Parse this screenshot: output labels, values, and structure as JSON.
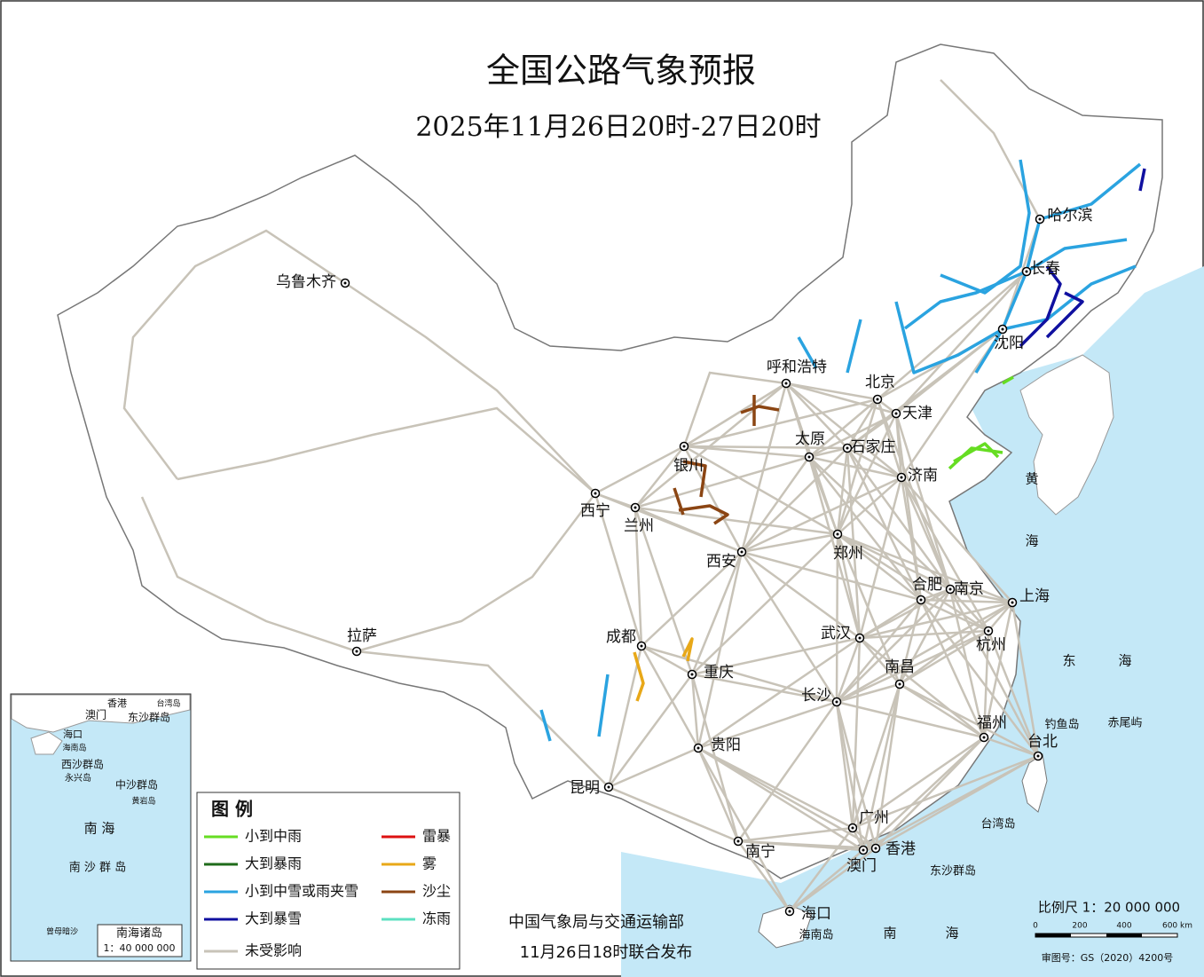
{
  "title": "全国公路气象预报",
  "subtitle": "2025年11月26日20时-27日20时",
  "cities": [
    "哈尔滨",
    "长春",
    "沈阳",
    "北京",
    "天津",
    "呼和浩特",
    "石家庄",
    "太原",
    "济南",
    "银川",
    "西宁",
    "兰州",
    "西安",
    "郑州",
    "合肥",
    "南京",
    "上海",
    "杭州",
    "武汉",
    "成都",
    "重庆",
    "拉萨",
    "乌鲁木齐",
    "南昌",
    "长沙",
    "福州",
    "台北",
    "贵阳",
    "昆明",
    "广州",
    "香港",
    "澳门",
    "南宁",
    "海口"
  ],
  "places": [
    "钓鱼岛",
    "赤尾屿",
    "台湾岛",
    "东沙群岛",
    "海南岛"
  ],
  "sea_labels": [
    "黄",
    "海",
    "东",
    "海",
    "南",
    "海"
  ],
  "legend": {
    "title": "图 例",
    "items": [
      {
        "label": "小到中雨",
        "color": "#66dd22"
      },
      {
        "label": "大到暴雨",
        "color": "#1f6b1a"
      },
      {
        "label": "小到中雪或雨夹雪",
        "color": "#2aa3e0"
      },
      {
        "label": "大到暴雪",
        "color": "#1010a0"
      },
      {
        "label": "未受影响",
        "color": "#c8c3b8"
      },
      {
        "label": "雷暴",
        "color": "#dd1111"
      },
      {
        "label": "雾",
        "color": "#e8a818"
      },
      {
        "label": "沙尘",
        "color": "#8b4513"
      },
      {
        "label": "冻雨",
        "color": "#5ce0c0"
      }
    ]
  },
  "issuer": [
    "中国气象局与交通运输部",
    "11月26日18时联合发布"
  ],
  "scale": {
    "label": "比例尺 1：20 000 000",
    "ticks": [
      "0",
      "200",
      "400",
      "600 km"
    ]
  },
  "approval": "审图号：GS（2020）4200号",
  "inset": {
    "labels": [
      "香港",
      "台湾岛",
      "澳门",
      "东沙群岛",
      "海口",
      "海南岛",
      "西沙群岛",
      "永兴岛",
      "中沙群岛",
      "黄岩岛",
      "南 海",
      "南 沙 群 岛",
      "曾母暗沙"
    ],
    "title": "南海诸岛",
    "scale": "1：40 000 000"
  }
}
